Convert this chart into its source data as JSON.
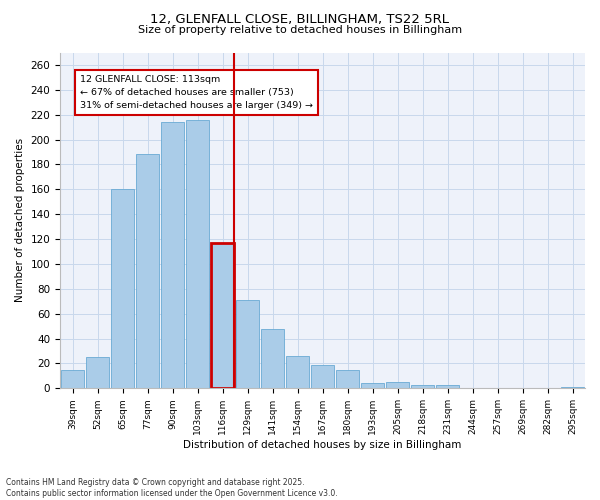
{
  "title_line1": "12, GLENFALL CLOSE, BILLINGHAM, TS22 5RL",
  "title_line2": "Size of property relative to detached houses in Billingham",
  "xlabel": "Distribution of detached houses by size in Billingham",
  "ylabel": "Number of detached properties",
  "categories": [
    "39sqm",
    "52sqm",
    "65sqm",
    "77sqm",
    "90sqm",
    "103sqm",
    "116sqm",
    "129sqm",
    "141sqm",
    "154sqm",
    "167sqm",
    "180sqm",
    "193sqm",
    "205sqm",
    "218sqm",
    "231sqm",
    "244sqm",
    "257sqm",
    "269sqm",
    "282sqm",
    "295sqm"
  ],
  "values": [
    15,
    25,
    160,
    188,
    214,
    216,
    117,
    71,
    48,
    26,
    19,
    15,
    4,
    5,
    3,
    3,
    0,
    0,
    0,
    0,
    1
  ],
  "bar_color": "#aacce8",
  "bar_edge_color": "#6aaad4",
  "highlight_bar_index": 6,
  "highlight_line_color": "#cc0000",
  "highlight_box_color": "#cc0000",
  "annotation_title": "12 GLENFALL CLOSE: 113sqm",
  "annotation_line1": "← 67% of detached houses are smaller (753)",
  "annotation_line2": "31% of semi-detached houses are larger (349) →",
  "ylim": [
    0,
    270
  ],
  "yticks": [
    0,
    20,
    40,
    60,
    80,
    100,
    120,
    140,
    160,
    180,
    200,
    220,
    240,
    260
  ],
  "grid_color": "#c8d8ec",
  "background_color": "#eef2fa",
  "footer_line1": "Contains HM Land Registry data © Crown copyright and database right 2025.",
  "footer_line2": "Contains public sector information licensed under the Open Government Licence v3.0."
}
